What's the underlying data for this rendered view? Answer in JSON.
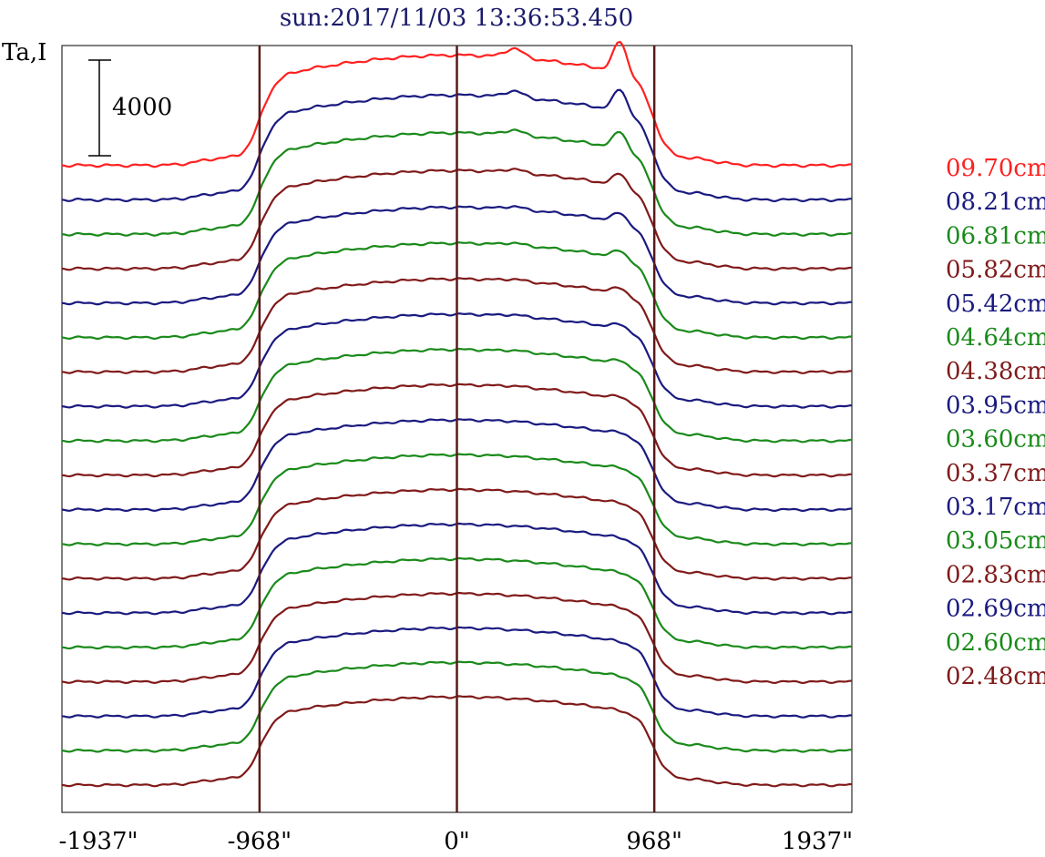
{
  "chart_data": {
    "type": "line",
    "title": "sun:2017/11/03 13:36:53.450",
    "ylabel": "Ta,I",
    "scale_bar_label": "4000",
    "scale_bar_value": 4000,
    "xlim": [
      -1937,
      1937
    ],
    "x_ticks": [
      -1937,
      -968,
      0,
      968,
      1937
    ],
    "x_tick_labels": [
      "-1937\"",
      "-968\"",
      "0\"",
      "968\"",
      "1937\""
    ],
    "vertical_reference_lines": [
      -968,
      0,
      968
    ],
    "reference_line_color": "#5a1a1a",
    "grid": false,
    "legend_position": "right",
    "series": [
      {
        "name": "09.70cm",
        "color": "#ff2020",
        "offset": 15,
        "amp": 1.0,
        "peak": 1.0
      },
      {
        "name": "08.21cm",
        "color": "#1a1a80",
        "offset": 14,
        "amp": 1.0,
        "peak": 0.75
      },
      {
        "name": "06.81cm",
        "color": "#1a8a1a",
        "offset": 13,
        "amp": 1.0,
        "peak": 0.6
      },
      {
        "name": "05.82cm",
        "color": "#801a1a",
        "offset": 12,
        "amp": 1.0,
        "peak": 0.45
      },
      {
        "name": "05.42cm",
        "color": "#1a1a80",
        "offset": 11,
        "amp": 1.0,
        "peak": 0.35
      },
      {
        "name": "04.64cm",
        "color": "#1a8a1a",
        "offset": 10,
        "amp": 1.0,
        "peak": 0.28
      },
      {
        "name": "04.38cm",
        "color": "#801a1a",
        "offset": 9,
        "amp": 1.0,
        "peak": 0.22
      },
      {
        "name": "03.95cm",
        "color": "#1a1a80",
        "offset": 8,
        "amp": 1.0,
        "peak": 0.18
      },
      {
        "name": "03.60cm",
        "color": "#1a8a1a",
        "offset": 7,
        "amp": 1.0,
        "peak": 0.14
      },
      {
        "name": "03.37cm",
        "color": "#801a1a",
        "offset": 6,
        "amp": 1.0,
        "peak": 0.1
      },
      {
        "name": "03.17cm",
        "color": "#1a1a80",
        "offset": 5,
        "amp": 1.0,
        "peak": 0.07
      },
      {
        "name": "03.05cm",
        "color": "#1a8a1a",
        "offset": 4,
        "amp": 1.0,
        "peak": 0.05
      },
      {
        "name": "02.83cm",
        "color": "#801a1a",
        "offset": 3,
        "amp": 1.0,
        "peak": 0.03
      },
      {
        "name": "02.69cm",
        "color": "#1a1a80",
        "offset": 2,
        "amp": 1.0,
        "peak": 0.02
      },
      {
        "name": "02.60cm",
        "color": "#1a8a1a",
        "offset": 1,
        "amp": 1.0,
        "peak": 0.01
      },
      {
        "name": "02.48cm",
        "color": "#801a1a",
        "offset": 0,
        "amp": 1.0,
        "peak": 0.0
      }
    ],
    "extra_traces": [
      {
        "color": "#1a1a80",
        "offset": -1
      },
      {
        "color": "#1a8a1a",
        "offset": -2
      },
      {
        "color": "#801a1a",
        "offset": -3
      }
    ]
  }
}
